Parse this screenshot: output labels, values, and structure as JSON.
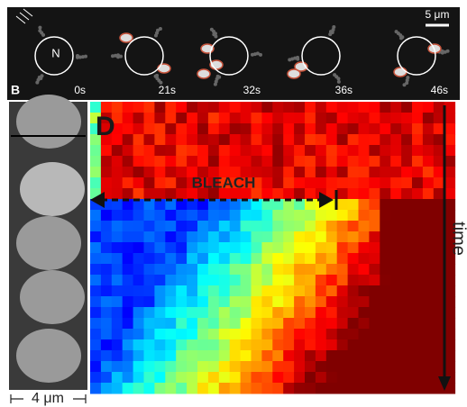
{
  "top_panel": {
    "scale_bar": "5 μm",
    "nucleus_label": "N",
    "panel_label": "B",
    "timepoints": [
      "0s",
      "21s",
      "32s",
      "36s",
      "46s"
    ]
  },
  "kymograph": {
    "panel_label": "D",
    "bleach_label": "BLEACH",
    "time_label": "time",
    "width_label": "4 μm"
  }
}
